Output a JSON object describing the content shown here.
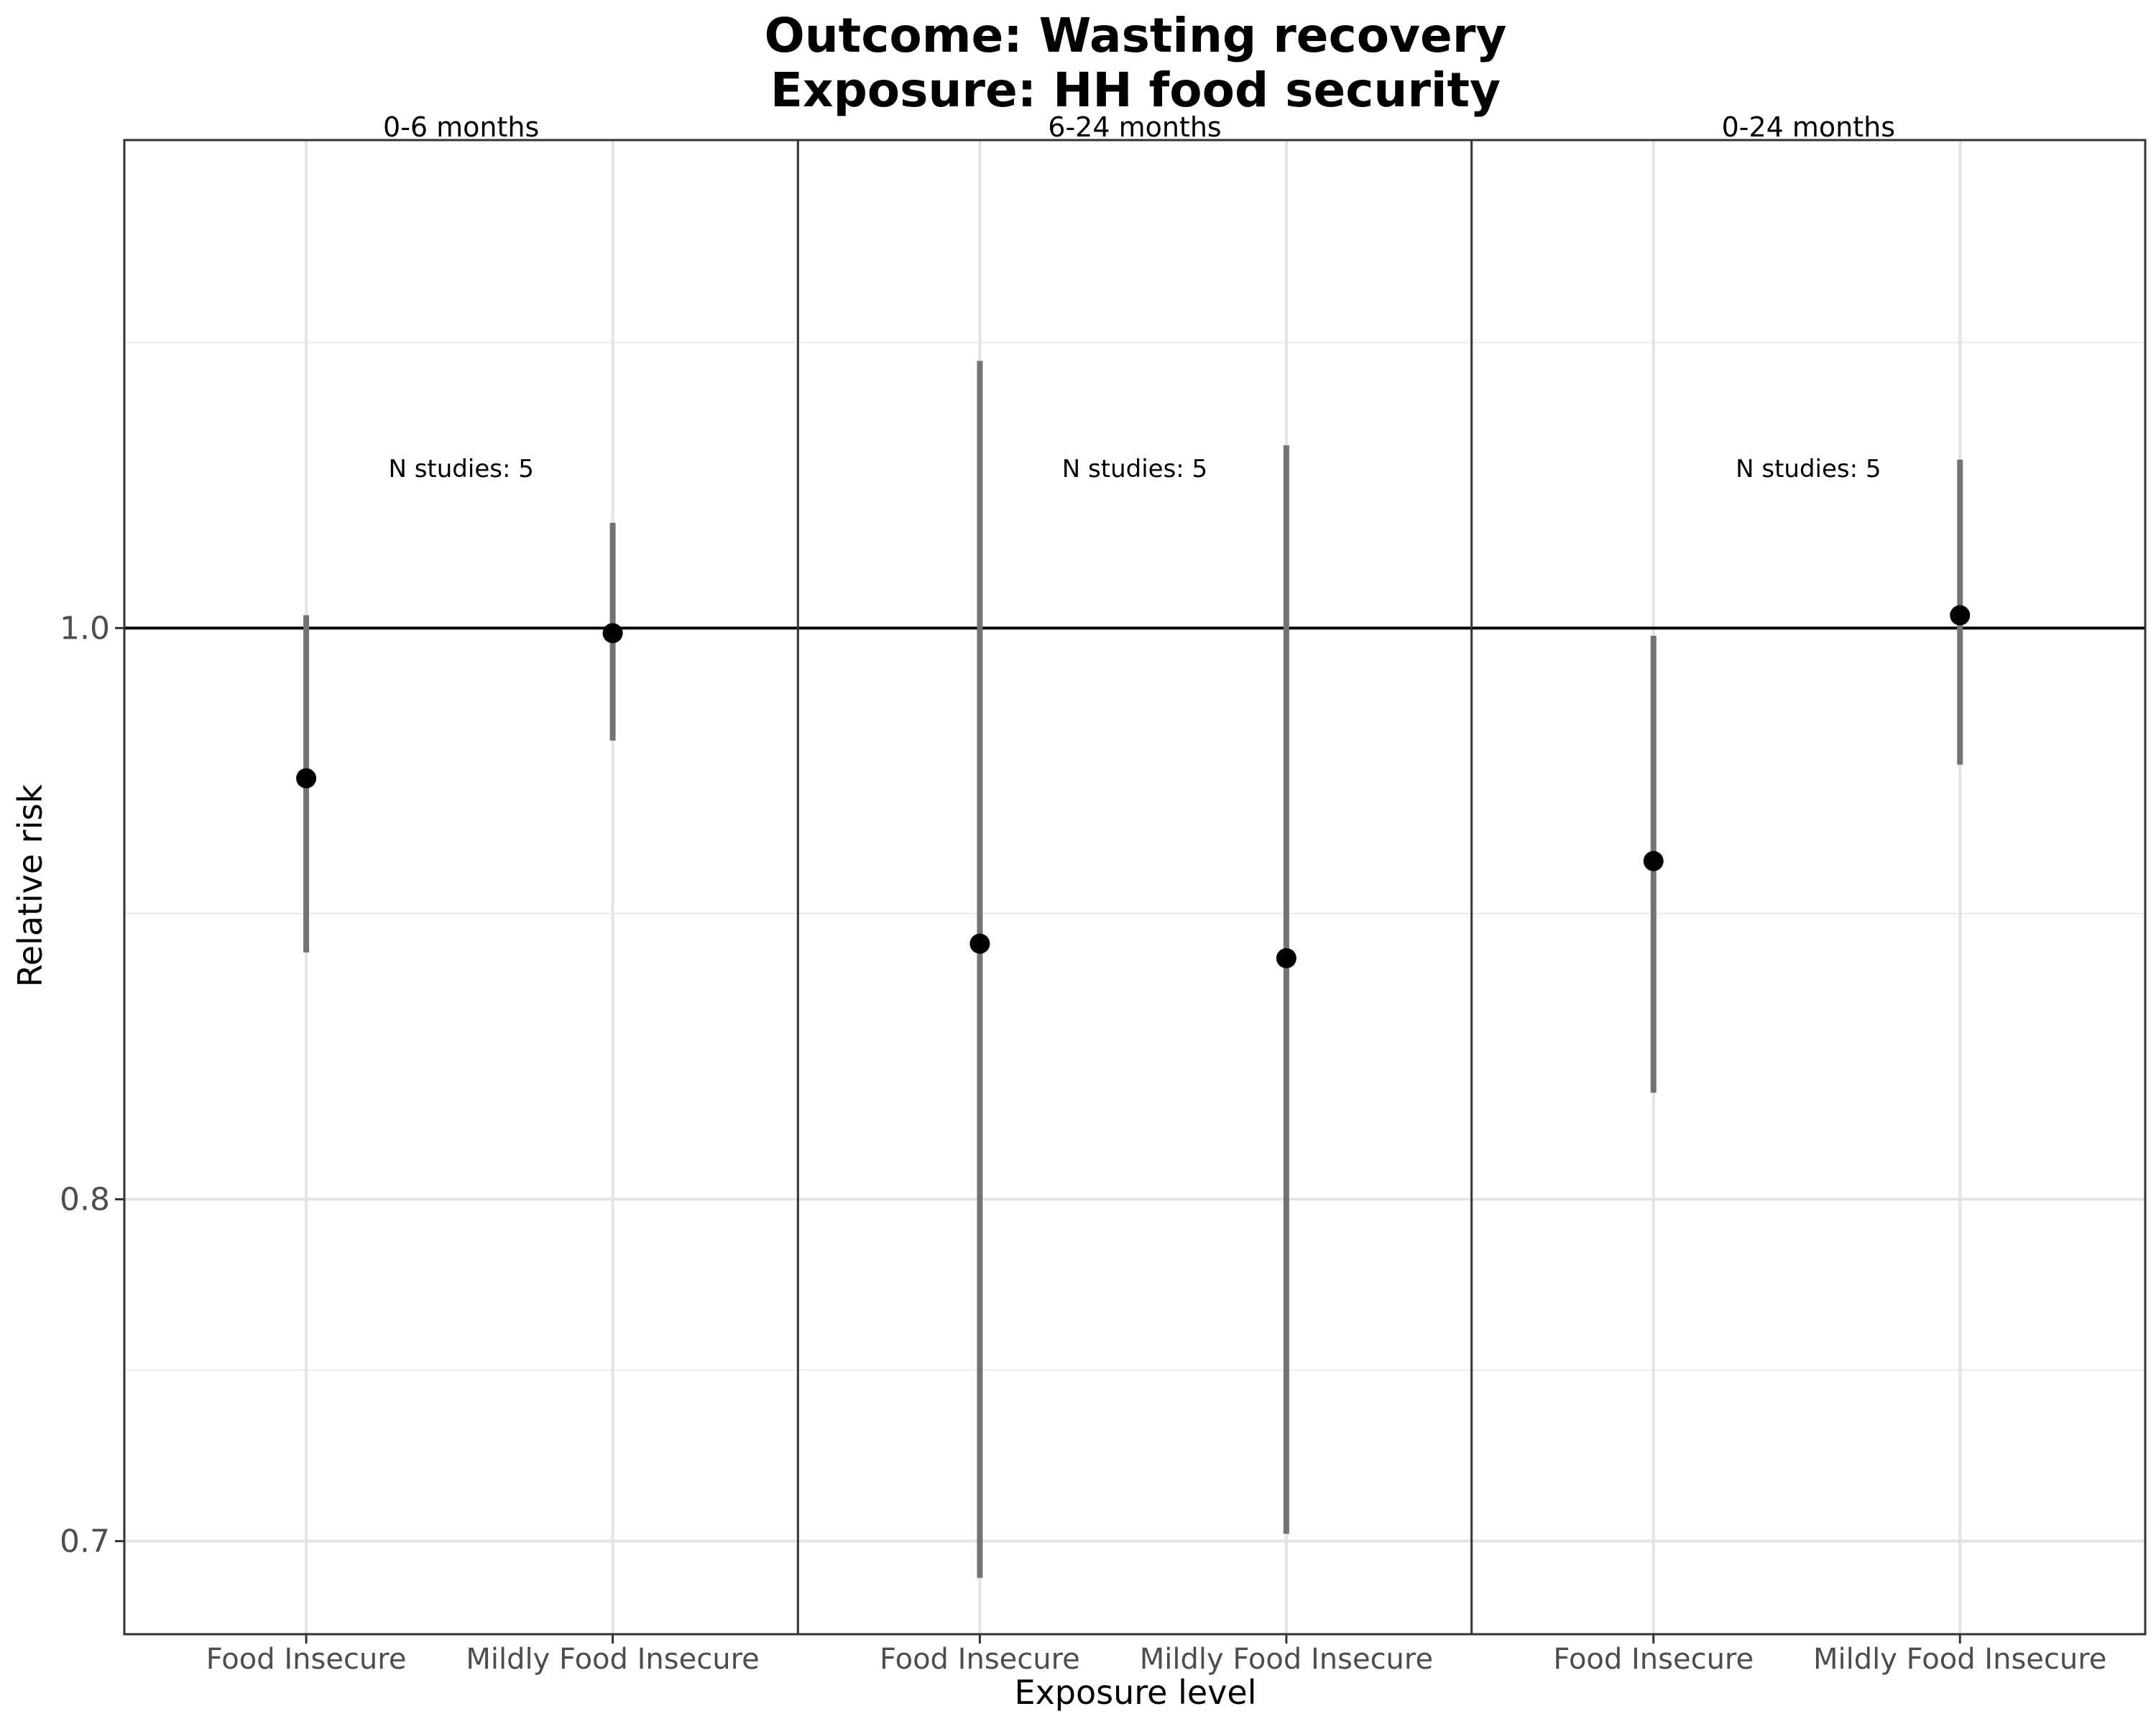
{
  "chart_data": {
    "type": "scatter",
    "title": [
      "Outcome: Wasting recovery",
      "Exposure: HH food security"
    ],
    "xlabel": "Exposure level",
    "ylabel": "Relative risk",
    "y_scale": "log",
    "ylim": [
      0.675,
      1.21
    ],
    "yticks": [
      0.7,
      0.8,
      1.0
    ],
    "reference_line": 1.0,
    "grid": true,
    "categories": [
      "Food Insecure",
      "Mildly Food Insecure"
    ],
    "facets": [
      {
        "label": "0-6 months",
        "annotation": "N studies: 5",
        "points": [
          {
            "category": "Food Insecure",
            "rr": 0.943,
            "ci_lower": 0.881,
            "ci_upper": 1.005
          },
          {
            "category": "Mildly Food Insecure",
            "rr": 0.998,
            "ci_lower": 0.957,
            "ci_upper": 1.042
          }
        ]
      },
      {
        "label": "6-24 months",
        "annotation": "N studies: 5",
        "points": [
          {
            "category": "Food Insecure",
            "rr": 0.884,
            "ci_lower": 0.69,
            "ci_upper": 1.11
          },
          {
            "category": "Mildly Food Insecure",
            "rr": 0.879,
            "ci_lower": 0.702,
            "ci_upper": 1.074
          }
        ]
      },
      {
        "label": "0-24 months",
        "annotation": "N studies: 5",
        "points": [
          {
            "category": "Food Insecure",
            "rr": 0.913,
            "ci_lower": 0.834,
            "ci_upper": 0.997
          },
          {
            "category": "Mildly Food Insecure",
            "rr": 1.005,
            "ci_lower": 0.948,
            "ci_upper": 1.068
          }
        ]
      }
    ]
  }
}
